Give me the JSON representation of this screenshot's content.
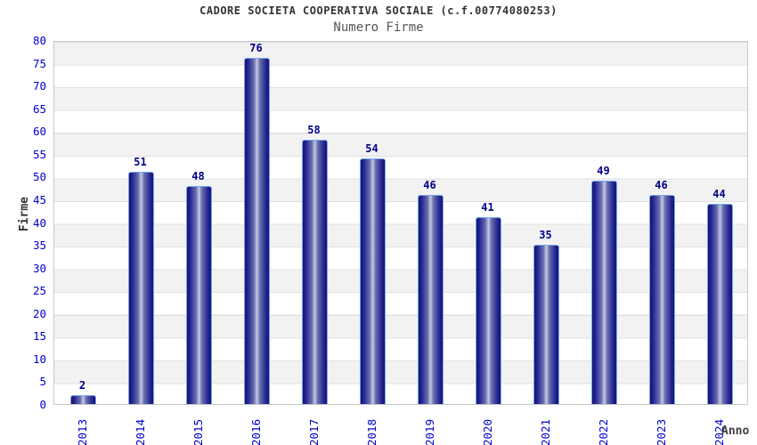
{
  "chart_data": {
    "type": "bar",
    "title": "CADORE SOCIETA COOPERATIVA SOCIALE (c.f.00774080253)",
    "subtitle": "Numero Firme",
    "xlabel": "Anno",
    "ylabel": "Firme",
    "categories": [
      "2013",
      "2014",
      "2015",
      "2016",
      "2017",
      "2018",
      "2019",
      "2020",
      "2021",
      "2022",
      "2023",
      "2024"
    ],
    "values": [
      2,
      51,
      48,
      76,
      58,
      54,
      46,
      41,
      35,
      49,
      46,
      44
    ],
    "ylim": [
      0,
      80
    ],
    "ytick_step": 5,
    "grid": "horizontal-bands-alternating",
    "legend": "none",
    "value_labels_shown": true,
    "colors": {
      "bar_dark": "#14147a",
      "bar_mid": "#23238e",
      "bar_light": "#c6cae2",
      "bar_border": "#74a7e8",
      "tick_label": "#0000cd",
      "value_label": "#00008b",
      "title": "#333333",
      "subtitle": "#555555",
      "axis_title": "#333333",
      "band_gray": "#f2f2f2",
      "grid_line": "#e0e0e0",
      "plot_border": "#c9c9c9"
    }
  }
}
